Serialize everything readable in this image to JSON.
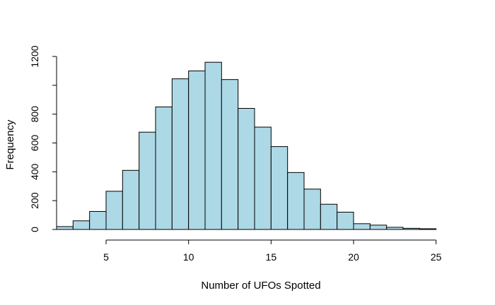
{
  "chart_data": {
    "type": "bar",
    "title": "",
    "xlabel": "Number of UFOs Spotted",
    "ylabel": "Frequency",
    "bins": [
      {
        "x0": 2,
        "x1": 3,
        "count": 20
      },
      {
        "x0": 3,
        "x1": 4,
        "count": 60
      },
      {
        "x0": 4,
        "x1": 5,
        "count": 125
      },
      {
        "x0": 5,
        "x1": 6,
        "count": 265
      },
      {
        "x0": 6,
        "x1": 7,
        "count": 410
      },
      {
        "x0": 7,
        "x1": 8,
        "count": 675
      },
      {
        "x0": 8,
        "x1": 9,
        "count": 850
      },
      {
        "x0": 9,
        "x1": 10,
        "count": 1045
      },
      {
        "x0": 10,
        "x1": 11,
        "count": 1100
      },
      {
        "x0": 11,
        "x1": 12,
        "count": 1160
      },
      {
        "x0": 12,
        "x1": 13,
        "count": 1040
      },
      {
        "x0": 13,
        "x1": 14,
        "count": 840
      },
      {
        "x0": 14,
        "x1": 15,
        "count": 710
      },
      {
        "x0": 15,
        "x1": 16,
        "count": 575
      },
      {
        "x0": 16,
        "x1": 17,
        "count": 395
      },
      {
        "x0": 17,
        "x1": 18,
        "count": 280
      },
      {
        "x0": 18,
        "x1": 19,
        "count": 175
      },
      {
        "x0": 19,
        "x1": 20,
        "count": 120
      },
      {
        "x0": 20,
        "x1": 21,
        "count": 40
      },
      {
        "x0": 21,
        "x1": 22,
        "count": 30
      },
      {
        "x0": 22,
        "x1": 23,
        "count": 15
      },
      {
        "x0": 23,
        "x1": 24,
        "count": 8
      },
      {
        "x0": 24,
        "x1": 25,
        "count": 5
      }
    ],
    "xlim": [
      2,
      26
    ],
    "ylim": [
      0,
      1200
    ],
    "xticks": [
      5,
      10,
      15,
      20,
      25
    ],
    "xtick_labels": [
      "5",
      "10",
      "15",
      "20",
      "25"
    ],
    "yticks": [
      0,
      200,
      400,
      600,
      800,
      1000,
      1200
    ],
    "ytick_labels": [
      "0",
      "200",
      "400",
      "600",
      "800",
      "",
      "1200"
    ],
    "bar_color": "#add8e6",
    "edge_color": "#000000",
    "grid": false,
    "legend": "none"
  }
}
